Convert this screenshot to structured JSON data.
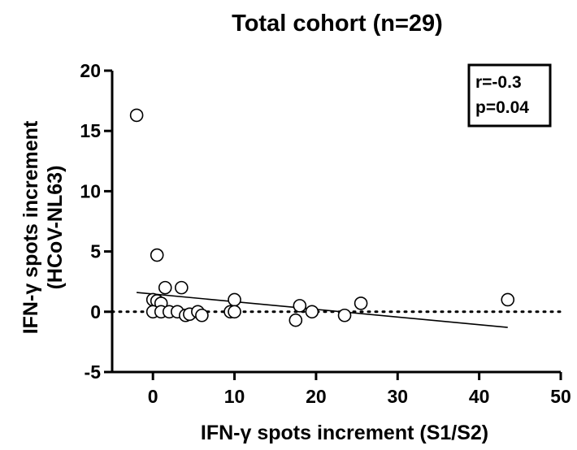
{
  "chart_data": {
    "type": "scatter",
    "title": "Total cohort (n=29)",
    "xlabel": "IFN-γ spots  increment (S1/S2)",
    "ylabel_line1": "IFN-γ spots increment",
    "ylabel_line2": "(HCoV-NL63)",
    "xlim": [
      -5,
      50
    ],
    "ylim": [
      -5,
      20
    ],
    "xticks": [
      0,
      10,
      20,
      30,
      40,
      50
    ],
    "yticks": [
      -5,
      0,
      5,
      10,
      15,
      20
    ],
    "grid": false,
    "stats": {
      "r": "r=-0.3",
      "p": "p=0.04"
    },
    "points": [
      {
        "x": -2,
        "y": 16.3
      },
      {
        "x": 0.5,
        "y": 4.7
      },
      {
        "x": 0,
        "y": 1.0
      },
      {
        "x": 0.5,
        "y": 0.9
      },
      {
        "x": 1.0,
        "y": 0.7
      },
      {
        "x": 1.5,
        "y": 2.0
      },
      {
        "x": 3.5,
        "y": 2.0
      },
      {
        "x": 0,
        "y": 0
      },
      {
        "x": 1.0,
        "y": 0
      },
      {
        "x": 2.0,
        "y": 0
      },
      {
        "x": 3.0,
        "y": 0
      },
      {
        "x": 4.0,
        "y": -0.3
      },
      {
        "x": 4.5,
        "y": -0.2
      },
      {
        "x": 5.5,
        "y": 0
      },
      {
        "x": 6.0,
        "y": -0.3
      },
      {
        "x": 9.5,
        "y": 0
      },
      {
        "x": 10.0,
        "y": 1.0
      },
      {
        "x": 10.0,
        "y": 0
      },
      {
        "x": 17.5,
        "y": -0.7
      },
      {
        "x": 18.0,
        "y": 0.5
      },
      {
        "x": 19.5,
        "y": 0
      },
      {
        "x": 23.5,
        "y": -0.3
      },
      {
        "x": 25.5,
        "y": 0.7
      },
      {
        "x": 43.5,
        "y": 1.0
      }
    ],
    "regression_line": {
      "x": [
        -2,
        43.5
      ],
      "y": [
        1.6,
        -1.3
      ]
    },
    "reference_line": {
      "y": 0,
      "style": "dotted"
    }
  }
}
